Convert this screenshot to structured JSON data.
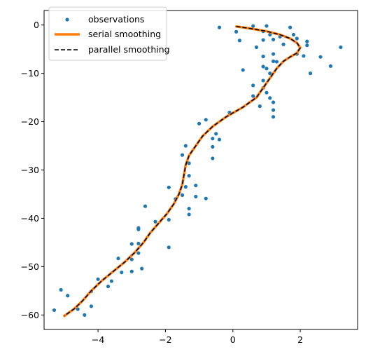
{
  "chart_data": {
    "type": "scatter",
    "xlim": [
      -5.6,
      3.7
    ],
    "ylim": [
      -63.0,
      3.0
    ],
    "x_ticks": [
      -4,
      -2,
      0,
      2
    ],
    "x_tick_labels": [
      "−4",
      "−2",
      "0",
      "2"
    ],
    "y_ticks": [
      0,
      -10,
      -20,
      -30,
      -40,
      -50,
      -60
    ],
    "y_tick_labels": [
      "0",
      "−10",
      "−20",
      "−30",
      "−40",
      "−50",
      "−60"
    ],
    "grid": false,
    "legend_position": "top-left",
    "colors": {
      "observations": "#1f77b4",
      "serial": "#ff7f0e",
      "parallel": "#000000"
    },
    "series": [
      {
        "name": "observations",
        "kind": "markers",
        "points": [
          [
            0.1,
            -1.4
          ],
          [
            0.2,
            -3.2
          ],
          [
            -0.4,
            -0.5
          ],
          [
            0.6,
            -0.2
          ],
          [
            0.9,
            -1.3
          ],
          [
            1.0,
            -0.2
          ],
          [
            1.1,
            -2.0
          ],
          [
            1.2,
            -3.0
          ],
          [
            1.4,
            -2.4
          ],
          [
            1.5,
            -4.0
          ],
          [
            1.7,
            -0.5
          ],
          [
            1.8,
            -2.0
          ],
          [
            1.9,
            -2.8
          ],
          [
            2.2,
            -3.4
          ],
          [
            2.2,
            -4.2
          ],
          [
            3.2,
            -4.6
          ],
          [
            0.7,
            -4.6
          ],
          [
            0.9,
            -3.1
          ],
          [
            0.9,
            -6.5
          ],
          [
            1.2,
            -6.0
          ],
          [
            1.2,
            -7.5
          ],
          [
            1.3,
            -7.6
          ],
          [
            1.9,
            -6.0
          ],
          [
            2.1,
            -6.4
          ],
          [
            2.6,
            -6.6
          ],
          [
            2.3,
            -10.0
          ],
          [
            2.9,
            -8.5
          ],
          [
            0.3,
            -9.3
          ],
          [
            0.9,
            -8.6
          ],
          [
            1.0,
            -9.0
          ],
          [
            1.1,
            -10.0
          ],
          [
            0.9,
            -11.5
          ],
          [
            0.9,
            -13.0
          ],
          [
            1.0,
            -14.0
          ],
          [
            1.1,
            -15.1
          ],
          [
            1.2,
            -16.0
          ],
          [
            1.2,
            -17.6
          ],
          [
            1.2,
            -19.0
          ],
          [
            0.6,
            -12.5
          ],
          [
            0.6,
            -14.7
          ],
          [
            0.8,
            -16.8
          ],
          [
            -0.1,
            -18.1
          ],
          [
            -0.8,
            -19.6
          ],
          [
            -1.0,
            -20.4
          ],
          [
            -0.5,
            -22.5
          ],
          [
            -0.6,
            -23.5
          ],
          [
            -0.4,
            -23.7
          ],
          [
            -0.6,
            -25.2
          ],
          [
            -0.6,
            -27.6
          ],
          [
            -1.4,
            -25.0
          ],
          [
            -1.5,
            -26.9
          ],
          [
            -1.3,
            -28.6
          ],
          [
            -1.3,
            -31.2
          ],
          [
            -1.1,
            -33.2
          ],
          [
            -1.4,
            -33.5
          ],
          [
            -1.5,
            -35.2
          ],
          [
            -1.1,
            -35.5
          ],
          [
            -0.8,
            -35.9
          ],
          [
            -1.7,
            -36.0
          ],
          [
            -1.3,
            -38.0
          ],
          [
            -1.3,
            -39.2
          ],
          [
            -1.9,
            -33.6
          ],
          [
            -1.9,
            -40.3
          ],
          [
            -2.3,
            -40.7
          ],
          [
            -2.6,
            -37.5
          ],
          [
            -2.8,
            -42.0
          ],
          [
            -2.8,
            -42.3
          ],
          [
            -3.0,
            -45.3
          ],
          [
            -2.8,
            -45.2
          ],
          [
            -2.8,
            -47.2
          ],
          [
            -3.0,
            -48.5
          ],
          [
            -2.7,
            -50.4
          ],
          [
            -1.9,
            -46.0
          ],
          [
            -3.4,
            -48.3
          ],
          [
            -3.0,
            -51.0
          ],
          [
            -3.3,
            -51.2
          ],
          [
            -3.6,
            -53.0
          ],
          [
            -3.7,
            -54.1
          ],
          [
            -4.0,
            -52.6
          ],
          [
            -4.2,
            -55.1
          ],
          [
            -4.6,
            -58.8
          ],
          [
            -4.2,
            -58.2
          ],
          [
            -4.4,
            -60.0
          ],
          [
            -4.9,
            -56.0
          ],
          [
            -5.1,
            -54.8
          ],
          [
            -5.3,
            -59.0
          ]
        ]
      },
      {
        "name": "serial smoothing",
        "kind": "line",
        "points": [
          [
            0.1,
            -0.3
          ],
          [
            0.5,
            -0.7
          ],
          [
            1.0,
            -1.3
          ],
          [
            1.4,
            -2.0
          ],
          [
            1.7,
            -2.8
          ],
          [
            1.9,
            -3.7
          ],
          [
            2.0,
            -4.7
          ],
          [
            1.9,
            -5.8
          ],
          [
            1.7,
            -6.6
          ],
          [
            1.5,
            -7.5
          ],
          [
            1.3,
            -9.0
          ],
          [
            1.1,
            -11.0
          ],
          [
            0.9,
            -13.0
          ],
          [
            0.7,
            -15.0
          ],
          [
            0.3,
            -17.0
          ],
          [
            -0.2,
            -19.0
          ],
          [
            -0.6,
            -21.0
          ],
          [
            -0.9,
            -23.0
          ],
          [
            -1.1,
            -25.0
          ],
          [
            -1.3,
            -27.0
          ],
          [
            -1.4,
            -29.0
          ],
          [
            -1.45,
            -31.0
          ],
          [
            -1.5,
            -33.0
          ],
          [
            -1.6,
            -35.0
          ],
          [
            -1.75,
            -37.0
          ],
          [
            -1.95,
            -39.0
          ],
          [
            -2.2,
            -41.0
          ],
          [
            -2.45,
            -43.0
          ],
          [
            -2.65,
            -45.0
          ],
          [
            -2.9,
            -47.0
          ],
          [
            -3.2,
            -49.0
          ],
          [
            -3.55,
            -51.0
          ],
          [
            -3.9,
            -53.0
          ],
          [
            -4.2,
            -55.0
          ],
          [
            -4.45,
            -57.0
          ],
          [
            -4.7,
            -58.7
          ],
          [
            -5.0,
            -60.2
          ]
        ]
      },
      {
        "name": "parallel smoothing",
        "kind": "dashed-line",
        "points": [
          [
            0.1,
            -0.3
          ],
          [
            0.5,
            -0.7
          ],
          [
            1.0,
            -1.3
          ],
          [
            1.4,
            -2.0
          ],
          [
            1.7,
            -2.8
          ],
          [
            1.9,
            -3.7
          ],
          [
            2.0,
            -4.7
          ],
          [
            1.9,
            -5.8
          ],
          [
            1.7,
            -6.6
          ],
          [
            1.5,
            -7.5
          ],
          [
            1.3,
            -9.0
          ],
          [
            1.1,
            -11.0
          ],
          [
            0.9,
            -13.0
          ],
          [
            0.7,
            -15.0
          ],
          [
            0.3,
            -17.0
          ],
          [
            -0.2,
            -19.0
          ],
          [
            -0.6,
            -21.0
          ],
          [
            -0.9,
            -23.0
          ],
          [
            -1.1,
            -25.0
          ],
          [
            -1.3,
            -27.0
          ],
          [
            -1.4,
            -29.0
          ],
          [
            -1.45,
            -31.0
          ],
          [
            -1.5,
            -33.0
          ],
          [
            -1.6,
            -35.0
          ],
          [
            -1.75,
            -37.0
          ],
          [
            -1.95,
            -39.0
          ],
          [
            -2.2,
            -41.0
          ],
          [
            -2.45,
            -43.0
          ],
          [
            -2.65,
            -45.0
          ],
          [
            -2.9,
            -47.0
          ],
          [
            -3.2,
            -49.0
          ],
          [
            -3.55,
            -51.0
          ],
          [
            -3.9,
            -53.0
          ],
          [
            -4.2,
            -55.0
          ],
          [
            -4.45,
            -57.0
          ],
          [
            -4.7,
            -58.7
          ],
          [
            -5.0,
            -60.2
          ]
        ]
      }
    ]
  }
}
